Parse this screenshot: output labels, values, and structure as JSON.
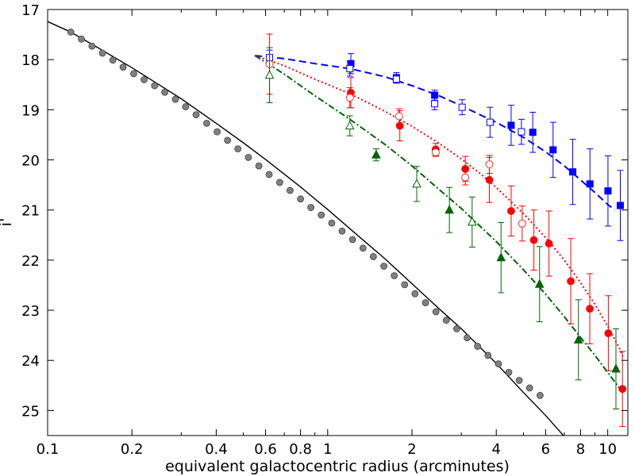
{
  "chart_data": {
    "type": "scatter",
    "title": "",
    "xlabel": "equivalent galactocentric radius (arcminutes)",
    "ylabel": "i'",
    "xscale": "log",
    "xlim": [
      0.1,
      11.8
    ],
    "ylim": [
      25.5,
      17.0
    ],
    "y_inverted": true,
    "grid": false,
    "x_ticks": [
      {
        "value": 0.1,
        "label": "0.1"
      },
      {
        "value": 0.2,
        "label": "0.2"
      },
      {
        "value": 0.4,
        "label": "0.4"
      },
      {
        "value": 0.6,
        "label": "0.6"
      },
      {
        "value": 0.8,
        "label": "0.8"
      },
      {
        "value": 1,
        "label": "1"
      },
      {
        "value": 2,
        "label": "2"
      },
      {
        "value": 4,
        "label": "4"
      },
      {
        "value": 6,
        "label": "6"
      },
      {
        "value": 8,
        "label": "8"
      },
      {
        "value": 10,
        "label": "10"
      }
    ],
    "x_minor_ticks": [
      0.3,
      0.5,
      0.7,
      0.9,
      3,
      5,
      7,
      9
    ],
    "y_ticks": [
      {
        "value": 17,
        "label": "17"
      },
      {
        "value": 18,
        "label": "18"
      },
      {
        "value": 19,
        "label": "19"
      },
      {
        "value": 20,
        "label": "20"
      },
      {
        "value": 21,
        "label": "21"
      },
      {
        "value": 22,
        "label": "22"
      },
      {
        "value": 23,
        "label": "23"
      },
      {
        "value": 24,
        "label": "24"
      },
      {
        "value": 25,
        "label": "25"
      }
    ],
    "series": [
      {
        "name": "galaxy profile",
        "kind": "points",
        "marker": "circle",
        "filled": true,
        "color": "#808080",
        "x": [
          0.121,
          0.132,
          0.144,
          0.157,
          0.171,
          0.186,
          0.203,
          0.221,
          0.241,
          0.262,
          0.286,
          0.311,
          0.339,
          0.37,
          0.403,
          0.439,
          0.478,
          0.521,
          0.568,
          0.618,
          0.674,
          0.734,
          0.8,
          0.871,
          0.949,
          1.034,
          1.126,
          1.227,
          1.337,
          1.456,
          1.587,
          1.729,
          1.883,
          2.051,
          2.235,
          2.435,
          2.652,
          2.89,
          3.148,
          3.429,
          3.736,
          4.07,
          4.434,
          4.83,
          5.262,
          5.733
        ],
        "y": [
          17.45,
          17.59,
          17.73,
          17.87,
          18.01,
          18.15,
          18.28,
          18.4,
          18.52,
          18.65,
          18.79,
          18.94,
          19.1,
          19.27,
          19.44,
          19.61,
          19.78,
          19.95,
          20.12,
          20.29,
          20.45,
          20.61,
          20.78,
          20.95,
          21.1,
          21.26,
          21.42,
          21.59,
          21.76,
          21.93,
          22.12,
          22.31,
          22.49,
          22.67,
          22.85,
          23.03,
          23.2,
          23.37,
          23.55,
          23.72,
          23.9,
          24.07,
          24.24,
          24.4,
          24.55,
          24.7
        ]
      },
      {
        "name": "galaxy fit",
        "kind": "line",
        "style": "solid",
        "color": "#000000",
        "x": [
          0.1,
          0.12,
          0.15,
          0.2,
          0.25,
          0.3,
          0.4,
          0.5,
          0.6,
          0.8,
          1.0,
          1.3,
          1.6,
          2.0,
          2.5,
          3.0,
          4.0,
          5.0,
          6.0,
          7.0,
          8.0
        ],
        "y": [
          17.24,
          17.44,
          17.75,
          18.16,
          18.5,
          18.78,
          19.27,
          19.66,
          19.99,
          20.54,
          20.99,
          21.54,
          21.97,
          22.47,
          22.97,
          23.37,
          24.06,
          24.64,
          25.1,
          25.52,
          25.86
        ]
      },
      {
        "name": "blue filled",
        "kind": "points",
        "marker": "square",
        "filled": true,
        "color": "#0000ff",
        "x": [
          1.21,
          1.76,
          2.41,
          4.52,
          5.4,
          6.38,
          7.5,
          8.64,
          10.02,
          11.09
        ],
        "y": [
          18.08,
          18.36,
          18.71,
          19.31,
          19.45,
          19.8,
          20.24,
          20.48,
          20.62,
          20.91
        ],
        "err": [
          0.2,
          0.1,
          0.1,
          0.4,
          0.4,
          0.55,
          0.65,
          0.7,
          0.7,
          0.7
        ]
      },
      {
        "name": "blue open",
        "kind": "points",
        "marker": "square",
        "filled": false,
        "color": "#0000ff",
        "x": [
          0.62,
          1.2,
          1.76,
          2.41,
          3.02,
          3.8,
          4.92
        ],
        "y": [
          17.96,
          18.18,
          18.39,
          18.88,
          18.95,
          19.25,
          19.44
        ],
        "err": [
          0.15,
          0.15,
          0.08,
          0.12,
          0.15,
          0.3,
          0.25
        ]
      },
      {
        "name": "red filled",
        "kind": "points",
        "marker": "circle",
        "filled": true,
        "color": "#ff0000",
        "x": [
          1.21,
          1.81,
          2.43,
          3.1,
          3.78,
          4.52,
          5.45,
          6.17,
          7.38,
          8.63,
          10.05,
          11.29
        ],
        "y": [
          18.66,
          19.32,
          19.79,
          20.18,
          20.4,
          21.02,
          21.6,
          21.67,
          22.42,
          22.97,
          23.46,
          24.57
        ],
        "err": [
          0.3,
          0.3,
          0.12,
          0.25,
          0.45,
          0.5,
          0.6,
          0.65,
          0.85,
          0.7,
          0.75,
          0.75
        ]
      },
      {
        "name": "red open",
        "kind": "points",
        "marker": "circle",
        "filled": false,
        "color": "#ff0000",
        "x": [
          0.62,
          1.2,
          1.8,
          2.43,
          3.1,
          3.78,
          4.95
        ],
        "y": [
          18.09,
          18.76,
          19.13,
          19.85,
          20.35,
          20.09,
          21.27
        ],
        "err": [
          0.6,
          0.2,
          0.15,
          0.08,
          0.15,
          0.18,
          0.35
        ]
      },
      {
        "name": "green filled",
        "kind": "points",
        "marker": "triangle",
        "filled": true,
        "color": "#006400",
        "x": [
          1.49,
          2.72,
          4.16,
          5.71,
          7.86,
          10.7
        ],
        "y": [
          19.9,
          21.0,
          21.95,
          22.48,
          23.59,
          24.17
        ],
        "err": [
          0.12,
          0.45,
          0.7,
          0.75,
          0.8,
          0.8
        ]
      },
      {
        "name": "green open",
        "kind": "points",
        "marker": "triangle",
        "filled": false,
        "color": "#006400",
        "x": [
          0.62,
          1.2,
          2.08,
          3.28
        ],
        "y": [
          18.31,
          19.32,
          20.48,
          21.24
        ],
        "err": [
          0.55,
          0.2,
          0.35,
          0.5
        ]
      },
      {
        "name": "blue fit",
        "kind": "line",
        "style": "dashed",
        "color": "#0000ff",
        "x": [
          0.55,
          0.7,
          0.9,
          1.2,
          1.6,
          2.0,
          2.5,
          3.0,
          3.5,
          4.0,
          5.0,
          6.0,
          7.0,
          8.0,
          9.0,
          10.0,
          10.6
        ],
        "y": [
          17.92,
          17.98,
          18.08,
          18.18,
          18.34,
          18.52,
          18.72,
          18.92,
          19.1,
          19.25,
          19.55,
          19.84,
          20.12,
          20.4,
          20.65,
          20.89,
          21.0
        ]
      },
      {
        "name": "red fit",
        "kind": "line",
        "style": "dotted",
        "color": "#ff0000",
        "x": [
          0.55,
          0.7,
          0.9,
          1.2,
          1.6,
          2.0,
          2.5,
          3.0,
          3.5,
          4.0,
          5.0,
          6.0,
          7.0,
          8.0,
          9.0,
          10.0,
          11.0,
          11.3
        ],
        "y": [
          17.92,
          18.12,
          18.39,
          18.68,
          19.03,
          19.33,
          19.67,
          19.98,
          20.27,
          20.55,
          21.07,
          21.55,
          22.0,
          22.45,
          22.88,
          23.32,
          23.75,
          23.92
        ]
      },
      {
        "name": "green fit",
        "kind": "line",
        "style": "dashdot",
        "color": "#006400",
        "x": [
          0.55,
          0.7,
          0.9,
          1.2,
          1.6,
          2.0,
          2.5,
          3.0,
          4.0,
          5.0,
          6.0,
          7.0,
          8.0,
          9.0,
          10.0,
          11.0,
          11.3
        ],
        "y": [
          17.92,
          18.29,
          18.72,
          19.19,
          19.69,
          20.12,
          20.59,
          20.97,
          21.63,
          22.19,
          22.68,
          23.13,
          23.54,
          23.9,
          24.24,
          24.55,
          24.66
        ]
      }
    ]
  }
}
